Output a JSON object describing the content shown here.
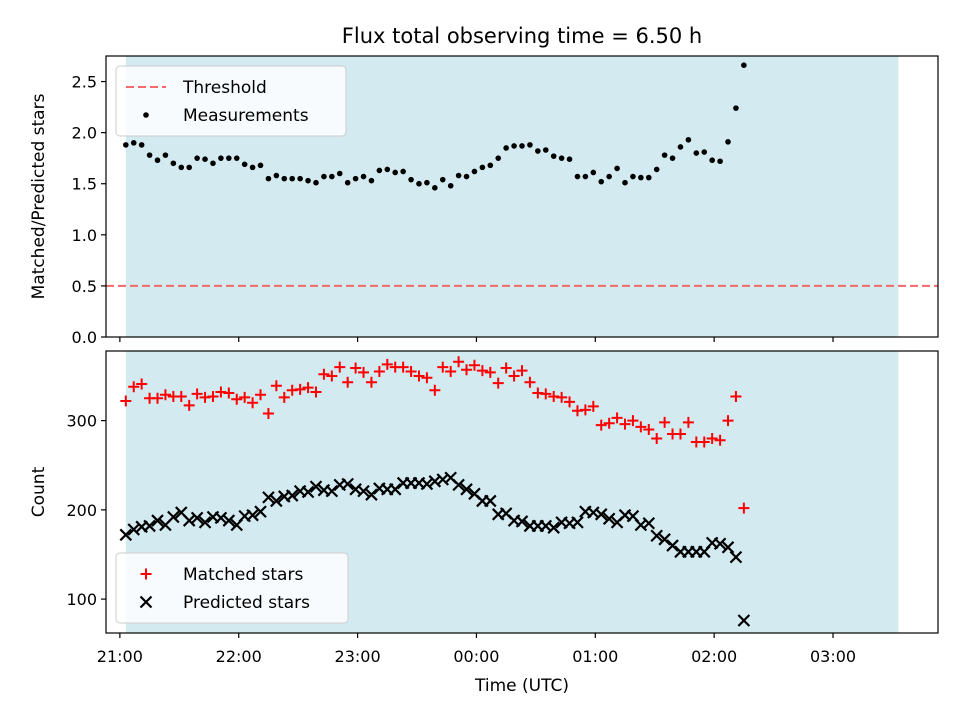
{
  "figure": {
    "title": "Flux total observing time = 6.50 h",
    "xlabel": "Time (UTC)"
  },
  "colors": {
    "span": "#d3eaf0",
    "threshold": "#f26a6a",
    "measurements": "#000000",
    "matched": "#ff0000",
    "predicted": "#000000"
  },
  "chart_data": [
    {
      "type": "scatter",
      "panel": "top",
      "title": "Flux total observing time = 6.50 h",
      "xlabel": "",
      "ylabel": "Matched/Predicted stars",
      "xlim": [
        "20:53",
        "03:53"
      ],
      "ylim": [
        0,
        2.75
      ],
      "yticks": [
        0.0,
        0.5,
        1.0,
        1.5,
        2.0,
        2.5
      ],
      "ytick_labels": [
        "0.0",
        "0.5",
        "1.0",
        "1.5",
        "2.0",
        "2.5"
      ],
      "grid": false,
      "legend_position": "top-left",
      "shaded_span": [
        "21:03",
        "03:33"
      ],
      "x_start": "21:03",
      "x_step_minutes": 4,
      "threshold": {
        "name": "Threshold",
        "value": 0.5,
        "style": "dashed"
      },
      "series": [
        {
          "name": "Measurements",
          "marker": "dot",
          "values": [
            1.88,
            1.9,
            1.88,
            1.78,
            1.73,
            1.78,
            1.7,
            1.66,
            1.66,
            1.75,
            1.74,
            1.7,
            1.75,
            1.75,
            1.75,
            1.69,
            1.66,
            1.68,
            1.55,
            1.58,
            1.55,
            1.55,
            1.55,
            1.53,
            1.51,
            1.57,
            1.57,
            1.6,
            1.51,
            1.55,
            1.57,
            1.53,
            1.63,
            1.64,
            1.61,
            1.62,
            1.54,
            1.5,
            1.51,
            1.46,
            1.54,
            1.48,
            1.58,
            1.57,
            1.62,
            1.66,
            1.68,
            1.75,
            1.85,
            1.87,
            1.87,
            1.88,
            1.82,
            1.83,
            1.77,
            1.75,
            1.74,
            1.57,
            1.57,
            1.61,
            1.52,
            1.57,
            1.65,
            1.51,
            1.57,
            1.56,
            1.56,
            1.64,
            1.78,
            1.75,
            1.86,
            1.93,
            1.8,
            1.81,
            1.73,
            1.72,
            1.91,
            2.24,
            2.66
          ]
        }
      ]
    },
    {
      "type": "scatter",
      "panel": "bottom",
      "xlabel": "Time (UTC)",
      "ylabel": "Count",
      "xlim": [
        "20:53",
        "03:53"
      ],
      "ylim": [
        62,
        378
      ],
      "yticks": [
        100,
        200,
        300
      ],
      "ytick_labels": [
        "100",
        "200",
        "300"
      ],
      "xticks": [
        "21:00",
        "22:00",
        "23:00",
        "00:00",
        "01:00",
        "02:00",
        "03:00"
      ],
      "grid": false,
      "legend_position": "lower-left",
      "shaded_span": [
        "21:03",
        "03:33"
      ],
      "x_start": "21:03",
      "x_step_minutes": 4,
      "series": [
        {
          "name": "Matched stars",
          "marker": "plus",
          "values": [
            322,
            338,
            341,
            325,
            325,
            329,
            327,
            327,
            317,
            330,
            326,
            327,
            332,
            331,
            324,
            326,
            320,
            329,
            308,
            339,
            326,
            334,
            335,
            337,
            332,
            352,
            350,
            360,
            343,
            359,
            354,
            343,
            355,
            363,
            360,
            360,
            355,
            350,
            348,
            334,
            360,
            355,
            366,
            357,
            362,
            356,
            354,
            342,
            359,
            350,
            356,
            343,
            331,
            330,
            327,
            326,
            321,
            311,
            312,
            316,
            295,
            297,
            303,
            296,
            300,
            293,
            290,
            280,
            298,
            285,
            285,
            298,
            276,
            276,
            280,
            278,
            300,
            327,
            202
          ]
        },
        {
          "name": "Predicted stars",
          "marker": "x",
          "values": [
            172,
            178,
            181,
            182,
            188,
            183,
            192,
            197,
            188,
            191,
            186,
            192,
            191,
            188,
            183,
            193,
            194,
            198,
            214,
            210,
            215,
            216,
            221,
            220,
            226,
            222,
            221,
            228,
            229,
            223,
            221,
            217,
            224,
            223,
            223,
            230,
            230,
            230,
            229,
            232,
            234,
            236,
            228,
            223,
            218,
            210,
            210,
            195,
            196,
            188,
            187,
            182,
            182,
            182,
            180,
            186,
            185,
            186,
            198,
            197,
            195,
            190,
            186,
            194,
            193,
            183,
            185,
            171,
            167,
            160,
            153,
            153,
            153,
            153,
            163,
            162,
            158,
            147,
            76
          ]
        }
      ]
    }
  ]
}
